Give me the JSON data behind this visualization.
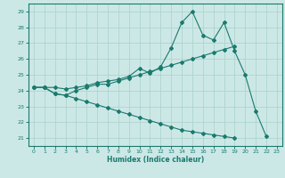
{
  "title": "",
  "xlabel": "Humidex (Indice chaleur)",
  "bg_color": "#cce8e6",
  "line_color": "#1a7a6e",
  "grid_color": "#aed4d0",
  "xlim": [
    -0.5,
    23.5
  ],
  "ylim": [
    20.5,
    29.5
  ],
  "xticks": [
    0,
    1,
    2,
    3,
    4,
    5,
    6,
    7,
    8,
    9,
    10,
    11,
    12,
    13,
    14,
    15,
    16,
    17,
    18,
    19,
    20,
    21,
    22,
    23
  ],
  "yticks": [
    21,
    22,
    23,
    24,
    25,
    26,
    27,
    28,
    29
  ],
  "line1_y": [
    24.2,
    24.2,
    24.2,
    24.1,
    24.2,
    24.3,
    24.5,
    24.6,
    24.7,
    24.9,
    25.4,
    25.1,
    25.5,
    26.7,
    28.3,
    29.0,
    27.5,
    27.2,
    28.3,
    26.5,
    25.0,
    22.7,
    21.1,
    null
  ],
  "line2_y": [
    24.2,
    24.2,
    23.8,
    23.7,
    24.0,
    24.2,
    24.4,
    24.4,
    24.6,
    24.8,
    25.0,
    25.2,
    25.4,
    25.6,
    25.8,
    26.0,
    26.2,
    26.4,
    26.6,
    26.8,
    null,
    null,
    null,
    null
  ],
  "line3_y": [
    24.2,
    24.2,
    23.8,
    23.7,
    23.5,
    23.3,
    23.1,
    22.9,
    22.7,
    22.5,
    22.3,
    22.1,
    21.9,
    21.7,
    21.5,
    21.4,
    21.3,
    21.2,
    21.1,
    21.0,
    null,
    null,
    null,
    null
  ]
}
